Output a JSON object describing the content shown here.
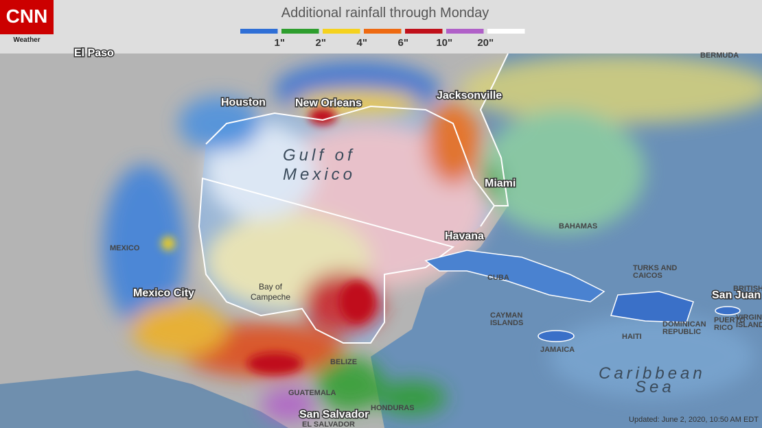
{
  "header": {
    "logo": "CNN",
    "logo_sub": "Weather",
    "title": "Additional rainfall through Monday"
  },
  "legend": {
    "colors": [
      "#2f6fd6",
      "#2e9e2e",
      "#f5d21e",
      "#ee6a12",
      "#c0101a",
      "#b060c8",
      "#ffffff"
    ],
    "labels": [
      "1\"",
      "2\"",
      "4\"",
      "6\"",
      "10\"",
      "20\""
    ]
  },
  "places": {
    "el_paso": "El Paso",
    "houston": "Houston",
    "new_orleans": "New Orleans",
    "jacksonville": "Jacksonville",
    "miami": "Miami",
    "havana": "Havana",
    "mexico_city": "Mexico City",
    "san_juan": "San Juan",
    "san_salvador": "San Salvador",
    "bermuda": "BERMUDA",
    "mexico": "MEXICO",
    "bahamas": "BAHAMAS",
    "turks_caicos": [
      "TURKS AND",
      "CAICOS"
    ],
    "cuba": "CUBA",
    "cayman": [
      "CAYMAN",
      "ISLANDS"
    ],
    "belize": "BELIZE",
    "jamaica": "JAMAICA",
    "haiti": "HAITI",
    "dominican": [
      "DOMINICAN",
      "REPUBLIC"
    ],
    "puerto_rico": [
      "PUERTO",
      "RICO"
    ],
    "virgin": [
      "VIRGIN",
      "ISLANDS"
    ],
    "british": "BRITISH",
    "guatemala": "GUATEMALA",
    "honduras": "HONDURAS",
    "el_salvador": "EL SALVADOR",
    "gulf": [
      "Gulf of",
      "Mexico"
    ],
    "campeche": [
      "Bay of",
      "Campeche"
    ],
    "caribbean": [
      "Caribbean",
      "Sea"
    ]
  },
  "footer": {
    "updated": "Updated: June 2, 2020, 10:50 AM EDT"
  }
}
